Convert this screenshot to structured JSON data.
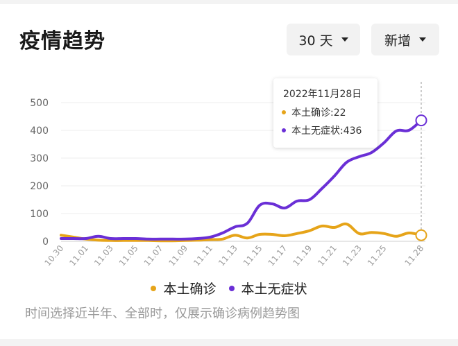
{
  "header": {
    "title": "疫情趋势",
    "range_label": "30 天",
    "mode_label": "新增"
  },
  "tooltip": {
    "date": "2022年11月28日",
    "row1": "本土确诊:22",
    "row2": "本土无症状:436"
  },
  "legend": {
    "series1": "本土确诊",
    "series2": "本土无症状"
  },
  "note": "时间选择近半年、全部时，仅展示确诊病例趋势图",
  "colors": {
    "confirmed": "#E6A419",
    "asymptomatic": "#6A2FD6"
  },
  "chart_data": {
    "type": "line",
    "x": [
      "10.30",
      "10.31",
      "11.01",
      "11.02",
      "11.03",
      "11.04",
      "11.05",
      "11.06",
      "11.07",
      "11.08",
      "11.09",
      "11.10",
      "11.11",
      "11.12",
      "11.13",
      "11.14",
      "11.15",
      "11.16",
      "11.17",
      "11.18",
      "11.19",
      "11.20",
      "11.21",
      "11.22",
      "11.23",
      "11.24",
      "11.25",
      "11.26",
      "11.27",
      "11.28"
    ],
    "x_tick_labels": [
      "10.30",
      "11.01",
      "11.03",
      "11.05",
      "11.07",
      "11.09",
      "11.11",
      "11.13",
      "11.15",
      "11.17",
      "11.19",
      "11.21",
      "11.23",
      "11.25",
      "11.28"
    ],
    "ylim": [
      0,
      500
    ],
    "yticks": [
      0,
      100,
      200,
      300,
      400,
      500
    ],
    "grid": true,
    "legend_position": "bottom",
    "series": [
      {
        "name": "本土确诊",
        "color": "#E6A419",
        "values": [
          22,
          15,
          8,
          4,
          3,
          3,
          3,
          3,
          2,
          2,
          3,
          4,
          6,
          8,
          22,
          12,
          25,
          25,
          20,
          28,
          38,
          55,
          50,
          62,
          28,
          32,
          28,
          18,
          30,
          22
        ]
      },
      {
        "name": "本土无症状",
        "color": "#6A2FD6",
        "values": [
          10,
          10,
          10,
          18,
          10,
          10,
          10,
          8,
          8,
          8,
          8,
          10,
          15,
          30,
          52,
          65,
          130,
          135,
          120,
          145,
          150,
          190,
          235,
          285,
          305,
          320,
          355,
          398,
          400,
          436
        ]
      }
    ]
  }
}
